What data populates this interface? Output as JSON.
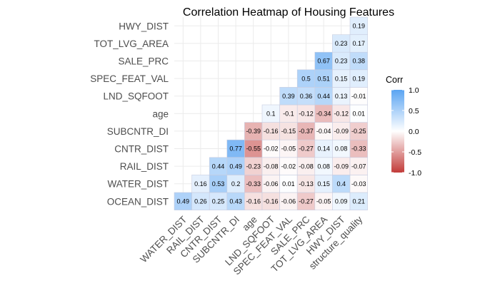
{
  "chart_data": {
    "type": "heatmap",
    "title": "Correlation Heatmap of Housing Features",
    "x_categories": [
      "WATER_DIST",
      "RAIL_DIST",
      "CNTR_DIST",
      "SUBCNTR_DI",
      "age",
      "LND_SQFOOT",
      "SPEC_FEAT_VAL",
      "SALE_PRC",
      "TOT_LVG_AREA",
      "HWY_DIST",
      "structure_quality"
    ],
    "y_categories": [
      "OCEAN_DIST",
      "WATER_DIST",
      "RAIL_DIST",
      "CNTR_DIST",
      "SUBCNTR_DI",
      "age",
      "LND_SQFOOT",
      "SPEC_FEAT_VAL",
      "SALE_PRC",
      "TOT_LVG_AREA",
      "HWY_DIST"
    ],
    "rows": [
      {
        "y": "OCEAN_DIST",
        "values": [
          0.49,
          0.26,
          0.25,
          0.43,
          -0.16,
          -0.16,
          -0.06,
          -0.27,
          -0.05,
          0.09,
          0.21
        ]
      },
      {
        "y": "WATER_DIST",
        "values": [
          null,
          0.16,
          0.53,
          0.2,
          -0.33,
          -0.06,
          0.01,
          -0.13,
          0.15,
          0.4,
          -0.03
        ]
      },
      {
        "y": "RAIL_DIST",
        "values": [
          null,
          null,
          0.44,
          0.49,
          -0.23,
          -0.08,
          -0.02,
          -0.08,
          0.08,
          -0.09,
          -0.07
        ]
      },
      {
        "y": "CNTR_DIST",
        "values": [
          null,
          null,
          null,
          0.77,
          -0.55,
          -0.02,
          -0.05,
          -0.27,
          0.14,
          0.08,
          -0.33
        ]
      },
      {
        "y": "SUBCNTR_DI",
        "values": [
          null,
          null,
          null,
          null,
          -0.39,
          -0.16,
          -0.15,
          -0.37,
          -0.04,
          -0.09,
          -0.25
        ]
      },
      {
        "y": "age",
        "values": [
          null,
          null,
          null,
          null,
          null,
          0.1,
          -0.1,
          -0.12,
          -0.34,
          -0.12,
          0.01
        ]
      },
      {
        "y": "LND_SQFOOT",
        "values": [
          null,
          null,
          null,
          null,
          null,
          null,
          0.39,
          0.36,
          0.44,
          0.13,
          -0.01
        ]
      },
      {
        "y": "SPEC_FEAT_VAL",
        "values": [
          null,
          null,
          null,
          null,
          null,
          null,
          null,
          0.5,
          0.51,
          0.15,
          0.19
        ]
      },
      {
        "y": "SALE_PRC",
        "values": [
          null,
          null,
          null,
          null,
          null,
          null,
          null,
          null,
          0.67,
          0.23,
          0.38
        ]
      },
      {
        "y": "TOT_LVG_AREA",
        "values": [
          null,
          null,
          null,
          null,
          null,
          null,
          null,
          null,
          null,
          0.23,
          0.17
        ]
      },
      {
        "y": "HWY_DIST",
        "values": [
          null,
          null,
          null,
          null,
          null,
          null,
          null,
          null,
          null,
          null,
          0.19
        ]
      }
    ],
    "legend": {
      "title": "Corr",
      "range": [
        -1,
        1
      ],
      "ticks": [
        "1.0",
        "0.5",
        "0.0",
        "-0.5",
        "-1.0"
      ],
      "tick_values": [
        1.0,
        0.5,
        0.0,
        -0.5,
        -1.0
      ],
      "position": "right"
    },
    "colors": {
      "high": "#5aa4f2",
      "mid": "#ffffff",
      "low": "#c23b39",
      "cell_border": "#c8cde0",
      "grid": "#ebebeb"
    },
    "grid": true
  }
}
